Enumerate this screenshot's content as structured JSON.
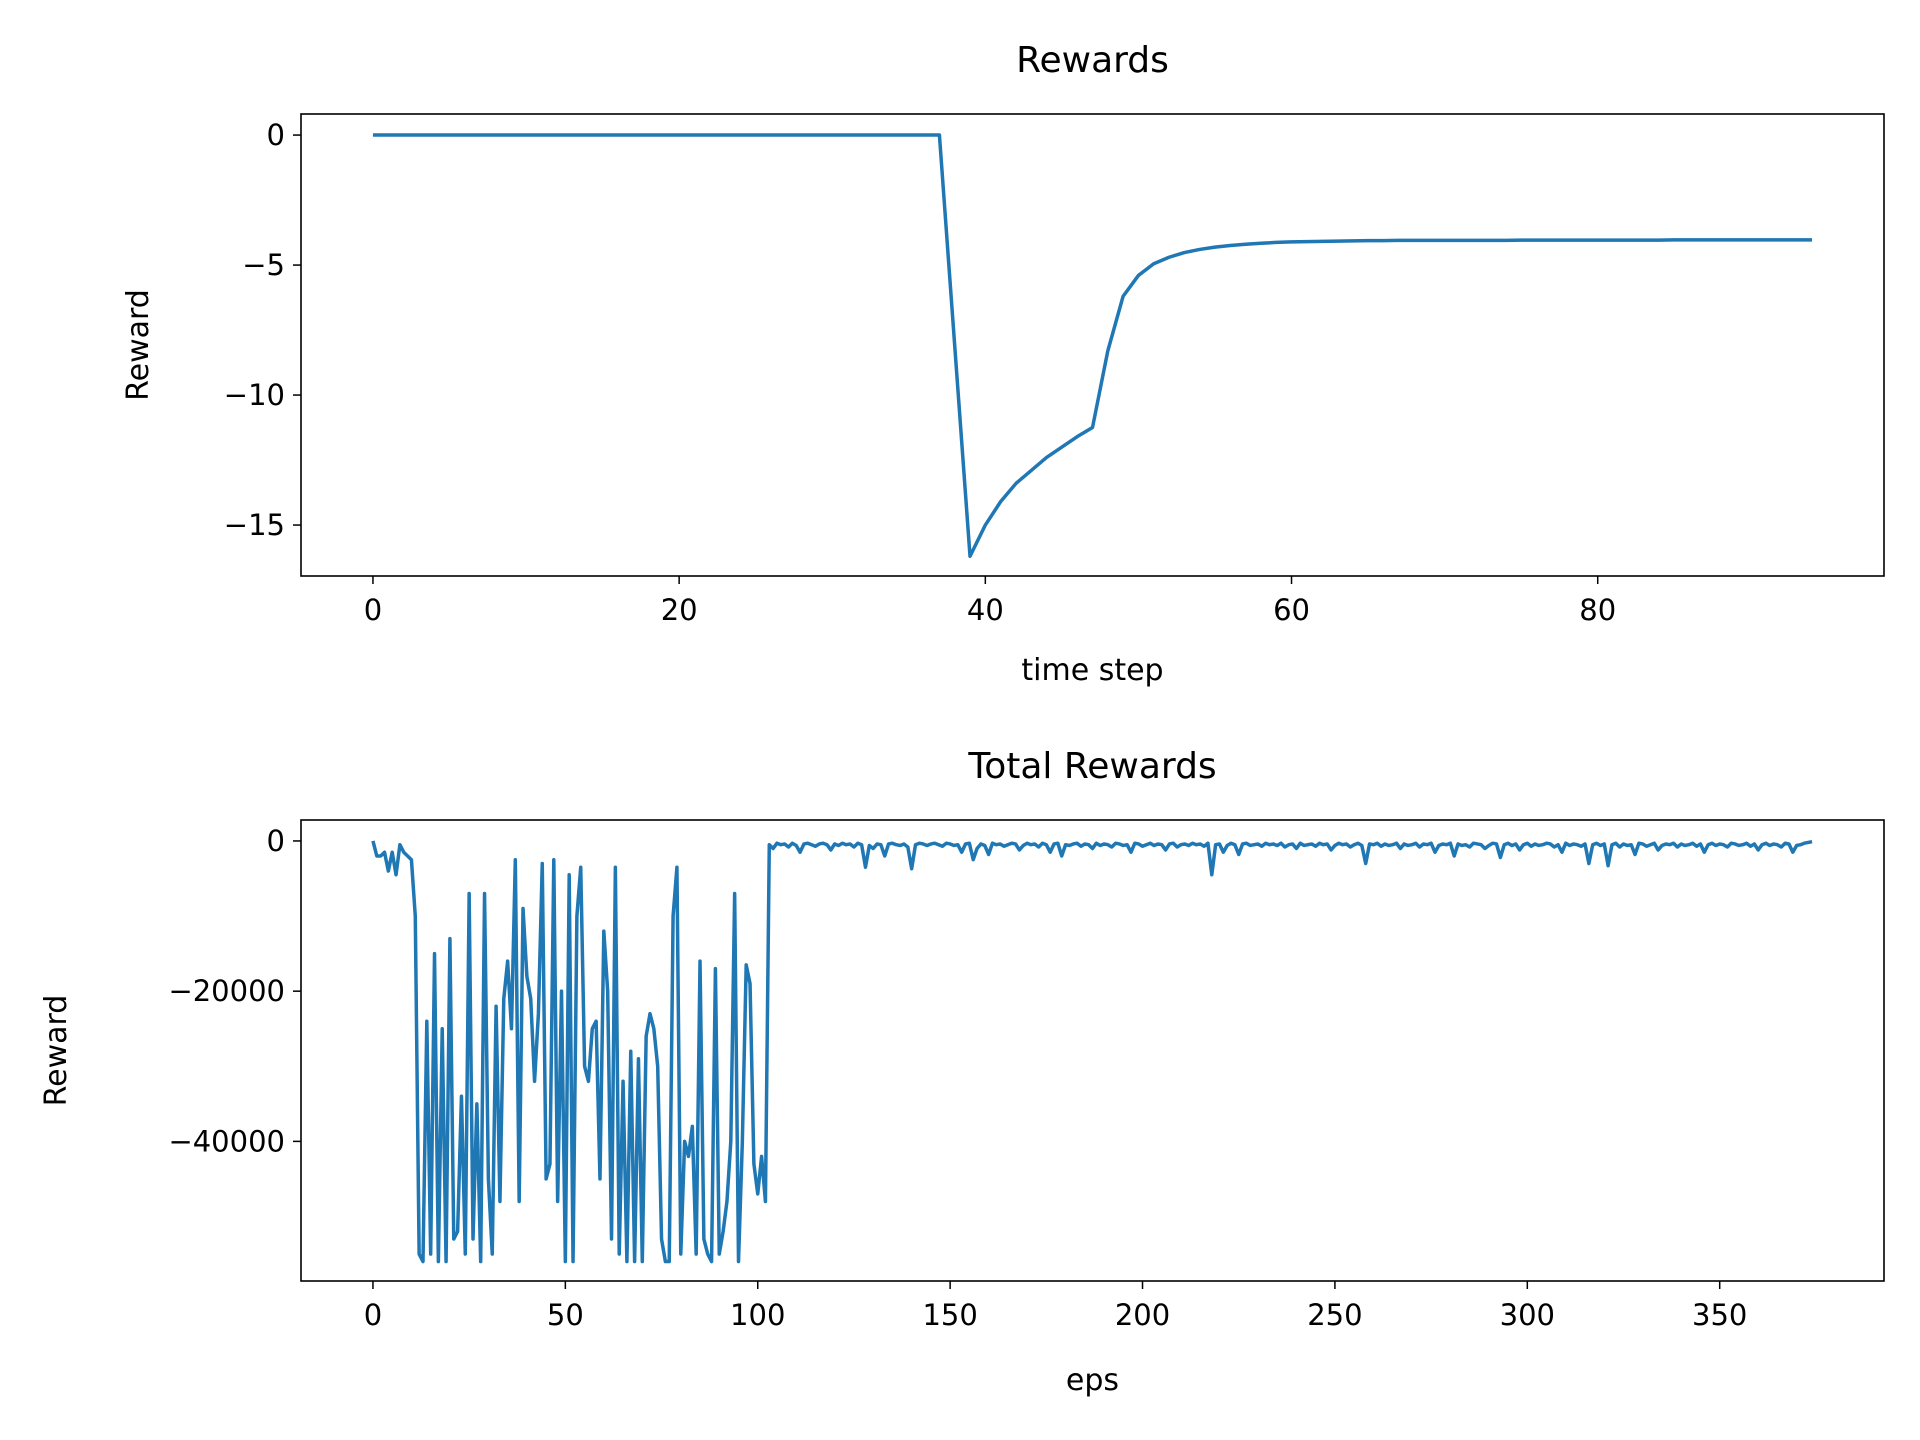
{
  "chart_data": [
    {
      "type": "line",
      "title": "Rewards",
      "xlabel": "time step",
      "ylabel": "Reward",
      "color": "#1f77b4",
      "values": [
        0,
        0,
        0,
        0,
        0,
        0,
        0,
        0,
        0,
        0,
        0,
        0,
        0,
        0,
        0,
        0,
        0,
        0,
        0,
        0,
        0,
        0,
        0,
        0,
        0,
        0,
        0,
        0,
        0,
        0,
        0,
        0,
        0,
        0,
        0,
        0,
        0,
        0,
        -8.1,
        -16.2,
        -15.0,
        -14.1,
        -13.4,
        -12.9,
        -12.4,
        -12.0,
        -11.6,
        -11.25,
        -8.3,
        -6.2,
        -5.4,
        -4.95,
        -4.7,
        -4.52,
        -4.4,
        -4.31,
        -4.25,
        -4.2,
        -4.16,
        -4.13,
        -4.11,
        -4.1,
        -4.09,
        -4.08,
        -4.07,
        -4.06,
        -4.06,
        -4.05,
        -4.05,
        -4.05,
        -4.05,
        -4.05,
        -4.05,
        -4.05,
        -4.05,
        -4.04,
        -4.04,
        -4.04,
        -4.04,
        -4.04,
        -4.04,
        -4.04,
        -4.04,
        -4.04,
        -4.04,
        -4.03,
        -4.03,
        -4.03,
        -4.03,
        -4.03,
        -4.03,
        -4.03,
        -4.03,
        -4.03,
        -4.03
      ],
      "xlim": [
        -4.7,
        98.7
      ],
      "xticks": [
        0,
        20,
        40,
        60,
        80
      ],
      "ylim": [
        -16.96,
        0.81
      ],
      "yticks": [
        0,
        {
          "value": -5,
          "label": "−5"
        },
        {
          "value": -10,
          "label": "−10"
        },
        {
          "value": -15,
          "label": "−15"
        }
      ]
    },
    {
      "type": "line",
      "title": "Total Rewards",
      "xlabel": "eps",
      "ylabel": "Reward",
      "color": "#1f77b4",
      "values": [
        0,
        -2000,
        -2000,
        -1500,
        -4000,
        -1500,
        -4500,
        -500,
        -1500,
        -2000,
        -2500,
        -10000,
        -55000,
        -56000,
        -24000,
        -55000,
        -15000,
        -56000,
        -25000,
        -56000,
        -13000,
        -53000,
        -52000,
        -34000,
        -55000,
        -7000,
        -53000,
        -35000,
        -56000,
        -7000,
        -45000,
        -55000,
        -22000,
        -48000,
        -21000,
        -16000,
        -25000,
        -2500,
        -48000,
        -9000,
        -18000,
        -21000,
        -32000,
        -23000,
        -3000,
        -45000,
        -43000,
        -2500,
        -48000,
        -20000,
        -56000,
        -4500,
        -56000,
        -10000,
        -3500,
        -30000,
        -32000,
        -25000,
        -24000,
        -45000,
        -12000,
        -20000,
        -53000,
        -3500,
        -55000,
        -32000,
        -56000,
        -28000,
        -56000,
        -29000,
        -56000,
        -26000,
        -23000,
        -25000,
        -30000,
        -53000,
        -56000,
        -56000,
        -10000,
        -3500,
        -55000,
        -40000,
        -42000,
        -38000,
        -55000,
        -16000,
        -53000,
        -55000,
        -56000,
        -17000,
        -55000,
        -52000,
        -48000,
        -40000,
        -7000,
        -56000,
        -40000,
        -16500,
        -19000,
        -43000,
        -47000,
        -42000,
        -48000,
        -500,
        -1000,
        -300,
        -500,
        -400,
        -800,
        -300,
        -600,
        -1500,
        -400,
        -300,
        -500,
        -700,
        -400,
        -300,
        -500,
        -1200,
        -400,
        -600,
        -300,
        -500,
        -400,
        -800,
        -300,
        -500,
        -3500,
        -600,
        -1000,
        -400,
        -500,
        -2000,
        -400,
        -300,
        -500,
        -600,
        -400,
        -800,
        -3700,
        -500,
        -300,
        -400,
        -600,
        -400,
        -300,
        -500,
        -700,
        -300,
        -400,
        -600,
        -500,
        -1500,
        -400,
        -300,
        -2500,
        -1000,
        -400,
        -600,
        -1800,
        -300,
        -500,
        -400,
        -700,
        -500,
        -300,
        -400,
        -1200,
        -600,
        -300,
        -500,
        -400,
        -800,
        -300,
        -500,
        -1500,
        -400,
        -300,
        -2000,
        -500,
        -600,
        -400,
        -300,
        -700,
        -400,
        -500,
        -1000,
        -300,
        -600,
        -400,
        -500,
        -800,
        -300,
        -400,
        -600,
        -500,
        -1500,
        -300,
        -400,
        -700,
        -500,
        -300,
        -600,
        -400,
        -500,
        -1200,
        -400,
        -300,
        -800,
        -500,
        -400,
        -600,
        -300,
        -500,
        -400,
        -700,
        -300,
        -4500,
        -500,
        -400,
        -1500,
        -600,
        -300,
        -500,
        -1800,
        -400,
        -300,
        -600,
        -500,
        -400,
        -700,
        -300,
        -500,
        -400,
        -600,
        -300,
        -800,
        -500,
        -400,
        -1000,
        -300,
        -600,
        -500,
        -400,
        -700,
        -300,
        -500,
        -400,
        -1200,
        -600,
        -300,
        -500,
        -400,
        -800,
        -500,
        -300,
        -600,
        -3000,
        -400,
        -500,
        -300,
        -700,
        -400,
        -600,
        -500,
        -300,
        -1000,
        -400,
        -600,
        -500,
        -300,
        -800,
        -400,
        -500,
        -300,
        -1500,
        -600,
        -400,
        -500,
        -300,
        -2000,
        -400,
        -600,
        -500,
        -800,
        -300,
        -400,
        -500,
        -1000,
        -600,
        -300,
        -400,
        -2200,
        -500,
        -300,
        -600,
        -400,
        -1200,
        -500,
        -300,
        -700,
        -400,
        -600,
        -500,
        -300,
        -400,
        -800,
        -500,
        -1500,
        -300,
        -600,
        -400,
        -500,
        -700,
        -400,
        -3000,
        -500,
        -300,
        -600,
        -400,
        -3300,
        -500,
        -300,
        -800,
        -400,
        -600,
        -500,
        -1800,
        -300,
        -400,
        -700,
        -500,
        -300,
        -1200,
        -600,
        -400,
        -500,
        -300,
        -800,
        -400,
        -600,
        -500,
        -300,
        -700,
        -400,
        -1500,
        -500,
        -300,
        -600,
        -400,
        -500,
        -800,
        -300,
        -400,
        -600,
        -500,
        -300,
        -700,
        -400,
        -1200,
        -500,
        -300,
        -600,
        -400,
        -500,
        -800,
        -300,
        -400,
        -1500,
        -600,
        -500,
        -300,
        -200,
        -100
      ],
      "xlim": [
        -18.7,
        392.7
      ],
      "xticks": [
        0,
        50,
        100,
        150,
        200,
        250,
        300,
        350
      ],
      "ylim": [
        -58590,
        2790
      ],
      "yticks": [
        0,
        {
          "value": -20000,
          "label": "−20000"
        },
        {
          "value": -40000,
          "label": "−40000"
        }
      ]
    }
  ]
}
